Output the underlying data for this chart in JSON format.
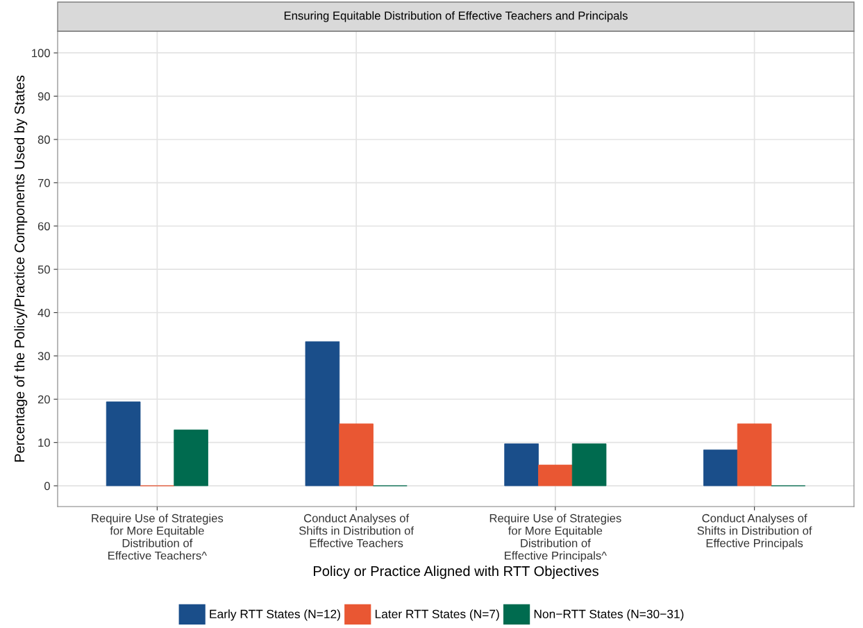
{
  "chart_data": {
    "type": "bar",
    "title": "Ensuring Equitable Distribution of Effective Teachers and Principals",
    "xlabel": "Policy or Practice Aligned with RTT Objectives",
    "ylabel": "Percentage of the Policy/Practice Components Used by States",
    "categories": [
      "Require Use of Strategies\nfor More Equitable\nDistribution of\nEffective Teachers^",
      "Conduct Analyses of\nShifts in Distribution of\nEffective Teachers",
      "Require Use of Strategies\nfor More Equitable\nDistribution of\nEffective Principals^",
      "Conduct Analyses of\nShifts in Distribution of\nEffective Principals"
    ],
    "series": [
      {
        "name": "Early RTT States (N=12)",
        "color": "#1a4e8a",
        "values": [
          19.4,
          33.3,
          9.7,
          8.3
        ]
      },
      {
        "name": "Later RTT States (N=7)",
        "color": "#e95733",
        "values": [
          0,
          14.3,
          4.8,
          14.3
        ]
      },
      {
        "name": "Non−RTT States (N=30−31)",
        "color": "#006b4f",
        "values": [
          12.9,
          0,
          9.7,
          0
        ]
      }
    ],
    "ylim": [
      -4.8,
      105
    ],
    "yticks": [
      0,
      10,
      20,
      30,
      40,
      50,
      60,
      70,
      80,
      90,
      100
    ],
    "grid": true,
    "legend": "bottom"
  }
}
